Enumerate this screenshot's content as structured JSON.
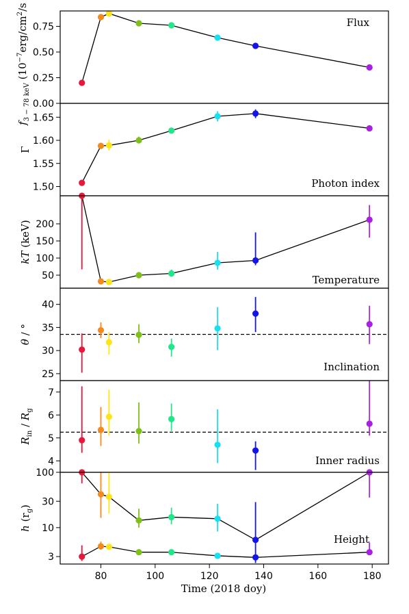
{
  "chart_data": {
    "type": "scatter",
    "xlabel": "Time (2018 doy)",
    "xlim": [
      65,
      186
    ],
    "xticks": [
      80,
      100,
      120,
      140,
      160,
      180
    ],
    "colors": [
      "#e6193c",
      "#f28a1e",
      "#ffe415",
      "#7fbf1a",
      "#22e68a",
      "#19e0f0",
      "#1414e6",
      "#a622e0"
    ],
    "panels": [
      {
        "id": "flux",
        "title": "Flux",
        "ylabel_main": "f",
        "ylabel_sub": "3 − 78 keV",
        "ylabel_rest": " (10",
        "ylabel_exp": "−7",
        "ylabel_units": "erg/cm",
        "ylabel_units_exp": "2",
        "ylabel_units_end": "/s",
        "scale": "linear",
        "ylim": [
          0,
          0.9
        ],
        "yticks": [
          "0.00",
          "0.25",
          "0.50",
          "0.75"
        ],
        "ytick_values": [
          0,
          0.25,
          0.5,
          0.75
        ],
        "line": true,
        "refline": null,
        "points": [
          {
            "x": 73,
            "y": 0.2,
            "lo": 0.2,
            "hi": 0.2
          },
          {
            "x": 80,
            "y": 0.84,
            "lo": 0.84,
            "hi": 0.84
          },
          {
            "x": 83,
            "y": 0.875,
            "lo": 0.875,
            "hi": 0.875
          },
          {
            "x": 94,
            "y": 0.78,
            "lo": 0.78,
            "hi": 0.78
          },
          {
            "x": 106,
            "y": 0.76,
            "lo": 0.76,
            "hi": 0.76
          },
          {
            "x": 123,
            "y": 0.64,
            "lo": 0.64,
            "hi": 0.64
          },
          {
            "x": 137,
            "y": 0.56,
            "lo": 0.56,
            "hi": 0.56
          },
          {
            "x": 179,
            "y": 0.35,
            "lo": 0.35,
            "hi": 0.35
          }
        ]
      },
      {
        "id": "photon-index",
        "title": "Photon index",
        "ylabel_main": "Γ",
        "scale": "linear",
        "ylim": [
          1.48,
          1.68
        ],
        "yticks": [
          "1.50",
          "1.55",
          "1.60",
          "1.65"
        ],
        "ytick_values": [
          1.5,
          1.55,
          1.6,
          1.65
        ],
        "line": true,
        "refline": null,
        "points": [
          {
            "x": 73,
            "y": 1.508,
            "lo": 1.503,
            "hi": 1.513
          },
          {
            "x": 80,
            "y": 1.588,
            "lo": 1.583,
            "hi": 1.593
          },
          {
            "x": 83,
            "y": 1.589,
            "lo": 1.578,
            "hi": 1.601
          },
          {
            "x": 94,
            "y": 1.6,
            "lo": 1.594,
            "hi": 1.608
          },
          {
            "x": 106,
            "y": 1.621,
            "lo": 1.616,
            "hi": 1.626
          },
          {
            "x": 123,
            "y": 1.652,
            "lo": 1.641,
            "hi": 1.663
          },
          {
            "x": 137,
            "y": 1.658,
            "lo": 1.648,
            "hi": 1.667
          },
          {
            "x": 179,
            "y": 1.626,
            "lo": 1.621,
            "hi": 1.632
          }
        ]
      },
      {
        "id": "temperature",
        "title": "Temperature",
        "ylabel_main": "kT",
        "ylabel_rest": " (keV)",
        "scale": "linear",
        "ylim": [
          12,
          282
        ],
        "yticks": [
          "50",
          "100",
          "150",
          "200"
        ],
        "ytick_values": [
          50,
          100,
          150,
          200
        ],
        "line": true,
        "refline": null,
        "points": [
          {
            "x": 73,
            "y": 282,
            "lo": 67,
            "hi": 282
          },
          {
            "x": 80,
            "y": 32,
            "lo": 27,
            "hi": 38
          },
          {
            "x": 83,
            "y": 30,
            "lo": 25,
            "hi": 35
          },
          {
            "x": 94,
            "y": 50,
            "lo": 45,
            "hi": 56
          },
          {
            "x": 106,
            "y": 55,
            "lo": 48,
            "hi": 66
          },
          {
            "x": 123,
            "y": 86,
            "lo": 66,
            "hi": 118
          },
          {
            "x": 137,
            "y": 93,
            "lo": 79,
            "hi": 175
          },
          {
            "x": 179,
            "y": 212,
            "lo": 160,
            "hi": 255
          }
        ]
      },
      {
        "id": "inclination",
        "title": "Inclination",
        "ylabel_main": "θ",
        "ylabel_rest": " / °",
        "scale": "linear",
        "ylim": [
          23.5,
          43.5
        ],
        "yticks": [
          "25",
          "30",
          "35",
          "40"
        ],
        "ytick_values": [
          25,
          30,
          35,
          40
        ],
        "line": false,
        "refline": 33.5,
        "points": [
          {
            "x": 73,
            "y": 30.2,
            "lo": 25.2,
            "hi": 33.7
          },
          {
            "x": 80,
            "y": 34.4,
            "lo": 32.7,
            "hi": 36.1
          },
          {
            "x": 83,
            "y": 31.8,
            "lo": 29.1,
            "hi": 34.0
          },
          {
            "x": 94,
            "y": 33.4,
            "lo": 31.6,
            "hi": 35.7
          },
          {
            "x": 106,
            "y": 30.8,
            "lo": 28.7,
            "hi": 32.6
          },
          {
            "x": 123,
            "y": 34.8,
            "lo": 30.1,
            "hi": 39.4
          },
          {
            "x": 137,
            "y": 38.0,
            "lo": 34.0,
            "hi": 41.6
          },
          {
            "x": 179,
            "y": 35.7,
            "lo": 31.4,
            "hi": 39.7
          }
        ]
      },
      {
        "id": "inner-radius",
        "title": "Inner radius",
        "ylabel_main": "R",
        "ylabel_sub": "in",
        "ylabel_rest": " / ",
        "ylabel_main2": "R",
        "ylabel_sub2": "g",
        "scale": "linear",
        "ylim": [
          3.5,
          7.5
        ],
        "yticks": [
          "4",
          "5",
          "6",
          "7"
        ],
        "ytick_values": [
          4,
          5,
          6,
          7
        ],
        "line": false,
        "refline": 5.25,
        "points": [
          {
            "x": 73,
            "y": 4.9,
            "lo": 4.35,
            "hi": 7.25
          },
          {
            "x": 80,
            "y": 5.35,
            "lo": 4.65,
            "hi": 6.35
          },
          {
            "x": 83,
            "y": 5.92,
            "lo": 5.1,
            "hi": 7.1
          },
          {
            "x": 94,
            "y": 5.3,
            "lo": 4.75,
            "hi": 6.55
          },
          {
            "x": 106,
            "y": 5.82,
            "lo": 5.3,
            "hi": 6.5
          },
          {
            "x": 123,
            "y": 4.7,
            "lo": 3.9,
            "hi": 6.25
          },
          {
            "x": 137,
            "y": 4.45,
            "lo": 3.6,
            "hi": 4.85
          },
          {
            "x": 179,
            "y": 5.62,
            "lo": 5.1,
            "hi": 7.5
          }
        ]
      },
      {
        "id": "height",
        "title": "Height",
        "ylabel_main": "h",
        "ylabel_rest": " (r",
        "ylabel_sub": "g",
        "ylabel_end": ")",
        "scale": "log",
        "ylim": [
          2.2,
          100
        ],
        "yticks": [
          "3",
          "10",
          "30",
          "100"
        ],
        "ytick_values": [
          3,
          10,
          30,
          100
        ],
        "line": true,
        "refline": null,
        "series": [
          {
            "name": "upper",
            "points": [
              {
                "x": 73,
                "y": 100,
                "lo": 63,
                "hi": 100
              },
              {
                "x": 80,
                "y": 40,
                "lo": 15,
                "hi": 100
              },
              {
                "x": 83,
                "y": 36,
                "lo": 18,
                "hi": 100
              },
              {
                "x": 94,
                "y": 13.5,
                "lo": 10,
                "hi": 22
              },
              {
                "x": 106,
                "y": 15.5,
                "lo": 11.5,
                "hi": 23
              },
              {
                "x": 123,
                "y": 14.5,
                "lo": 8.5,
                "hi": 27
              },
              {
                "x": 137,
                "y": 6,
                "lo": 2.3,
                "hi": 29
              },
              {
                "x": 179,
                "y": 100,
                "lo": 35,
                "hi": 100
              }
            ]
          },
          {
            "name": "lower",
            "points": [
              {
                "x": 73,
                "y": 3.0,
                "lo": 2.5,
                "hi": 4.8
              },
              {
                "x": 80,
                "y": 4.6,
                "lo": 4.0,
                "hi": 5.6
              },
              {
                "x": 83,
                "y": 4.5,
                "lo": 4.0,
                "hi": 5.1
              },
              {
                "x": 94,
                "y": 3.6,
                "lo": 3.4,
                "hi": 3.8
              },
              {
                "x": 106,
                "y": 3.6,
                "lo": 3.4,
                "hi": 3.9
              },
              {
                "x": 123,
                "y": 3.1,
                "lo": 2.8,
                "hi": 3.5
              },
              {
                "x": 137,
                "y": 2.9,
                "lo": 2.6,
                "hi": 3.2
              },
              {
                "x": 179,
                "y": 3.6,
                "lo": 3.2,
                "hi": 5.4
              }
            ]
          }
        ]
      }
    ]
  }
}
